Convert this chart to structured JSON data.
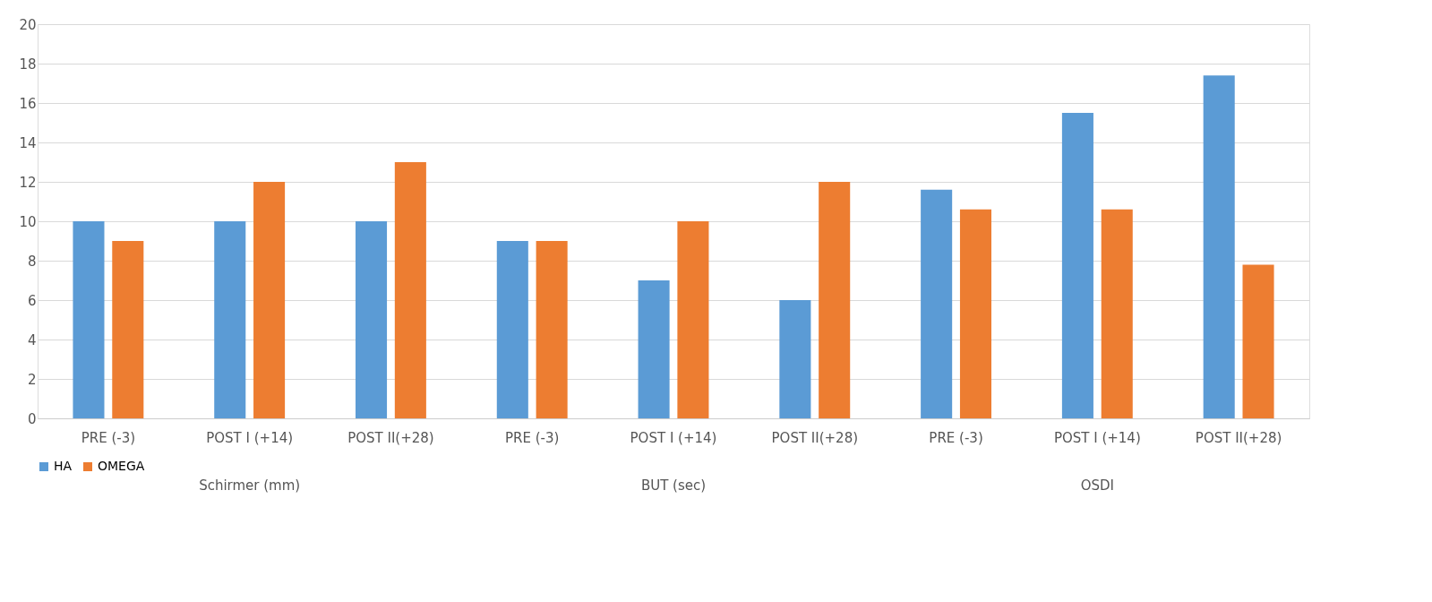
{
  "chart_data": {
    "type": "bar",
    "categories": [
      "PRE (-3)",
      "POST I (+14)",
      "POST II(+28)",
      "PRE (-3)",
      "POST I (+14)",
      "POST II(+28)",
      "PRE (-3)",
      "POST I (+14)",
      "POST II(+28)"
    ],
    "series": [
      {
        "name": "HA",
        "color": "#5b9bd5",
        "values": [
          10,
          10,
          10,
          9,
          7,
          6,
          11.6,
          15.5,
          17.4
        ]
      },
      {
        "name": "OMEGA",
        "color": "#ed7d31",
        "values": [
          9,
          12,
          13,
          9,
          10,
          12,
          10.6,
          10.6,
          7.8
        ]
      }
    ],
    "annotations": [
      "Schirmer (mm)",
      "BUT (sec)",
      "OSDI"
    ],
    "ylim": [
      0,
      20
    ],
    "yticks": [
      0,
      2,
      4,
      6,
      8,
      10,
      12,
      14,
      16,
      18,
      20
    ],
    "grid": "y",
    "legend": "bottom"
  }
}
